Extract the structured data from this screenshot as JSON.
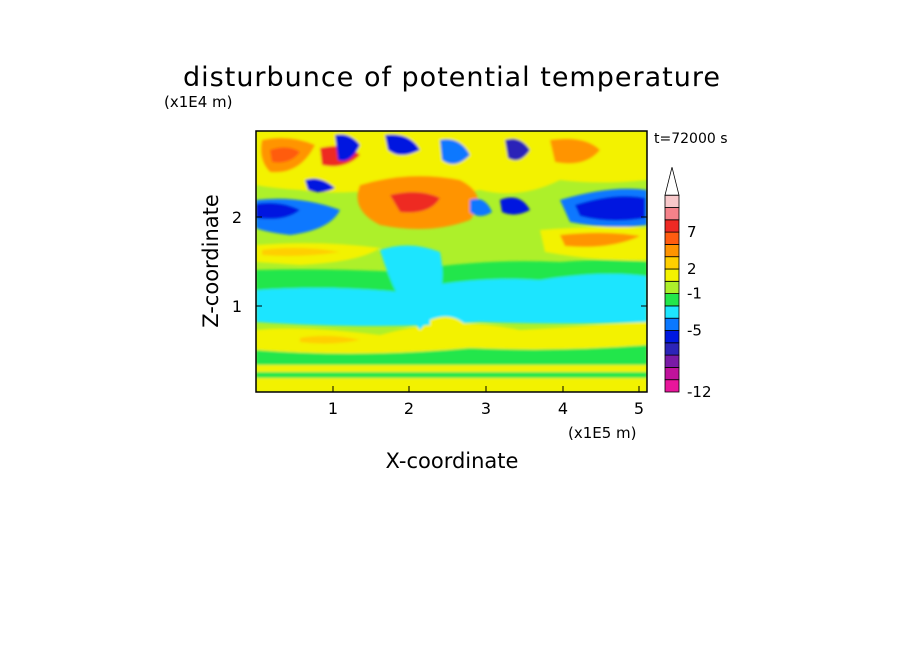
{
  "chart_data": {
    "type": "heatmap",
    "title": "disturbunce of potential temperature",
    "time_label": "t=72000 s",
    "xlabel": "X-coordinate",
    "ylabel": "Z-coordinate",
    "x_unit": "(x1E5 m)",
    "y_unit": "(x1E4 m)",
    "x_ticks": [
      "1",
      "2",
      "3",
      "4",
      "5"
    ],
    "y_ticks": [
      "1",
      "2"
    ],
    "xlim": [
      0,
      5.1
    ],
    "ylim": [
      0,
      2.9
    ],
    "colorbar": {
      "tick_labels": [
        "7",
        "2",
        "-1",
        "-5",
        "-12"
      ],
      "colors": [
        "#e8169b",
        "#c0129c",
        "#7a1aa6",
        "#2c24b8",
        "#0018e0",
        "#0a78ff",
        "#1ee5ff",
        "#23e64b",
        "#adf02a",
        "#f3f200",
        "#ffcf00",
        "#ff9400",
        "#ff5c10",
        "#ee2a24",
        "#f5828a",
        "#f8c8ca"
      ],
      "extend": "max"
    }
  }
}
